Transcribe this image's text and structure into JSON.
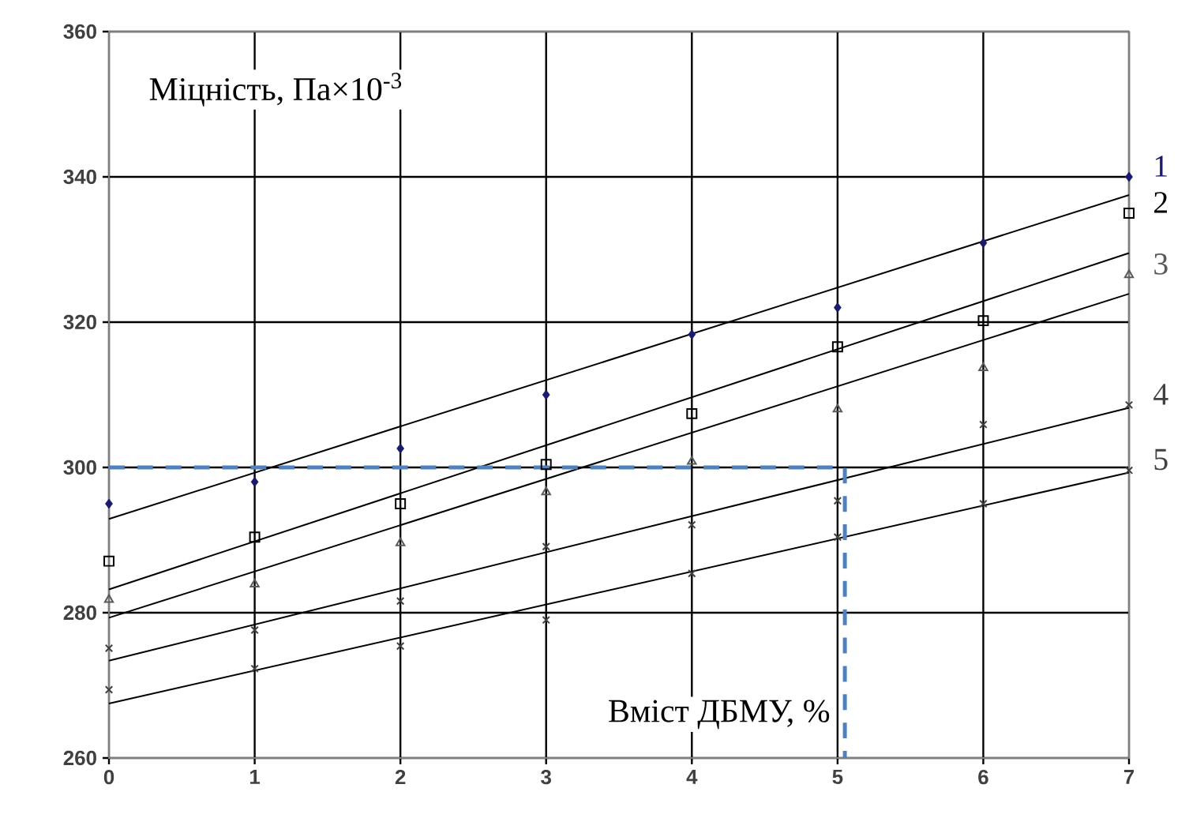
{
  "chart_data": {
    "type": "scatter",
    "xlabel": "Вміст ДБМУ, %",
    "ylabel": "Міцність, Па×10$^{-3}$",
    "x": [
      0,
      1,
      2,
      3,
      4,
      5,
      6,
      7
    ],
    "xlim": [
      0,
      7
    ],
    "ylim": [
      260,
      360
    ],
    "xticks": [
      0,
      1,
      2,
      3,
      4,
      5,
      6,
      7
    ],
    "yticks": [
      260,
      280,
      300,
      320,
      340,
      360
    ],
    "grid": true,
    "legend": "right",
    "series": [
      {
        "name": "1",
        "marker": "diamond",
        "color": "#1a1a6e",
        "values": [
          295,
          298,
          302.6,
          310,
          318.3,
          322,
          330.9,
          340
        ]
      },
      {
        "name": "2",
        "marker": "square",
        "color": "#000000",
        "values": [
          287.1,
          290.4,
          295,
          300.4,
          307.4,
          316.6,
          320.2,
          335
        ]
      },
      {
        "name": "3",
        "marker": "triangle",
        "color": "#595959",
        "values": [
          281.8,
          283.9,
          289.6,
          296.6,
          300.8,
          308,
          313.7,
          326.5
        ]
      },
      {
        "name": "4",
        "marker": "cross",
        "color": "#404040",
        "values": [
          275.1,
          277.6,
          281.6,
          289.1,
          292.1,
          295.4,
          305.9,
          308.6
        ]
      },
      {
        "name": "5",
        "marker": "cross",
        "color": "#404040",
        "values": [
          269.4,
          272.3,
          275.4,
          279,
          285.4,
          290.4,
          295,
          299.6
        ]
      },
      {
        "type": "line",
        "marker": "none",
        "line_style": "solid",
        "color": "#000000",
        "x": [
          0,
          7
        ],
        "values": [
          292.9,
          337.5
        ]
      },
      {
        "type": "line",
        "marker": "none",
        "line_style": "solid",
        "color": "#000000",
        "x": [
          0,
          7
        ],
        "values": [
          283.2,
          329.5
        ]
      },
      {
        "type": "line",
        "marker": "none",
        "line_style": "solid",
        "color": "#000000",
        "x": [
          0,
          7
        ],
        "values": [
          279.3,
          323.9
        ]
      },
      {
        "type": "line",
        "marker": "none",
        "line_style": "solid",
        "color": "#000000",
        "x": [
          0,
          7
        ],
        "values": [
          273.4,
          308.2
        ]
      },
      {
        "type": "line",
        "marker": "none",
        "line_style": "solid",
        "color": "#000000",
        "x": [
          0,
          7
        ],
        "values": [
          267.5,
          299.3
        ]
      },
      {
        "type": "line",
        "marker": "none",
        "line_style": "dashed",
        "color": "#4f81bd",
        "x": [
          0,
          5.05,
          5.05
        ],
        "values": [
          300,
          300,
          260
        ]
      }
    ]
  }
}
